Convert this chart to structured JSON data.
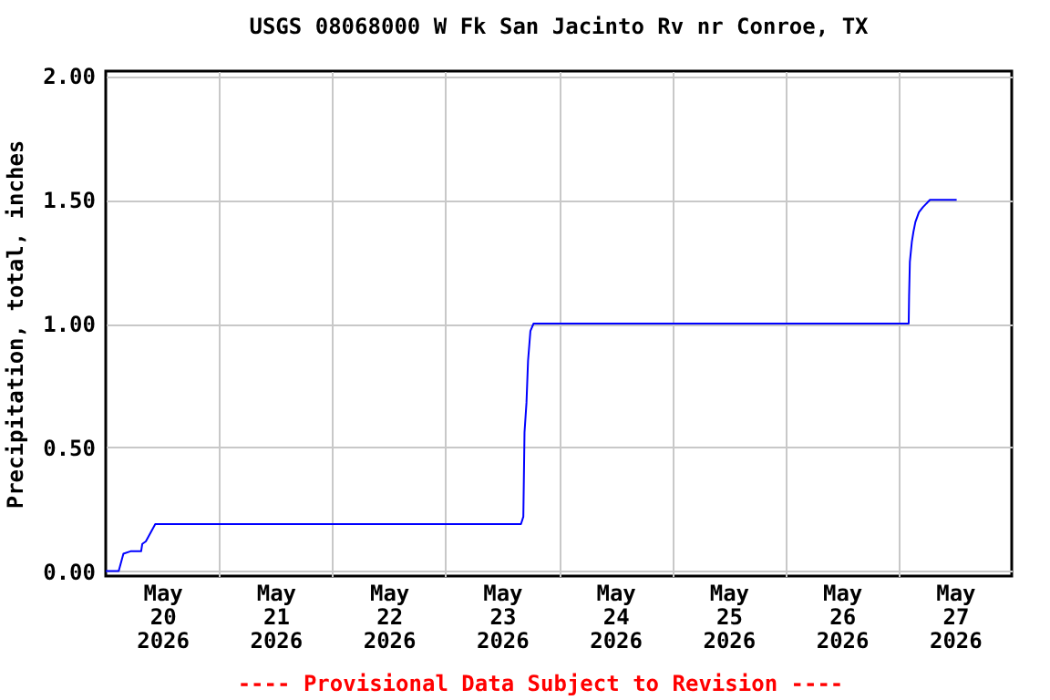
{
  "chart_data": {
    "type": "line",
    "title": "USGS 08068000 W Fk San Jacinto Rv nr Conroe, TX",
    "ylabel": "Precipitation, total, inches",
    "annotations": [
      "---- Provisional Data Subject to Revision ----"
    ],
    "x": [
      "2026-05-20T00:00",
      "2026-05-20T02:45",
      "2026-05-20T03:45",
      "2026-05-20T05:15",
      "2026-05-20T07:30",
      "2026-05-20T07:45",
      "2026-05-20T08:30",
      "2026-05-20T10:30",
      "2026-05-23T16:00",
      "2026-05-23T16:30",
      "2026-05-23T16:45",
      "2026-05-23T17:10",
      "2026-05-23T17:30",
      "2026-05-23T18:00",
      "2026-05-23T18:40",
      "2026-05-27T02:10",
      "2026-05-27T02:15",
      "2026-05-27T02:25",
      "2026-05-27T02:50",
      "2026-05-27T03:10",
      "2026-05-27T03:35",
      "2026-05-27T04:20",
      "2026-05-27T05:10",
      "2026-05-27T06:40",
      "2026-05-27T12:20"
    ],
    "series": [
      {
        "color": "#0000ff",
        "values": [
          0,
          0,
          0.07,
          0.08,
          0.08,
          0.11,
          0.12,
          0.19,
          0.19,
          0.22,
          0.56,
          0.68,
          0.85,
          0.97,
          1.0,
          1.0,
          1.11,
          1.25,
          1.33,
          1.37,
          1.41,
          1.45,
          1.47,
          1.5,
          1.5
        ]
      }
    ],
    "xlim": [
      "2026-05-20T00:00",
      "2026-05-28T00:00"
    ],
    "xticks": [
      {
        "value": "2026-05-21T00:00",
        "label": null
      },
      {
        "value": "2026-05-22T00:00",
        "label": null
      },
      {
        "value": "2026-05-23T00:00",
        "label": null
      },
      {
        "value": "2026-05-24T00:00",
        "label": null
      },
      {
        "value": "2026-05-25T00:00",
        "label": null
      },
      {
        "value": "2026-05-26T00:00",
        "label": null
      },
      {
        "value": "2026-05-27T00:00",
        "label": null
      },
      {
        "value": "2026-05-20T12:00",
        "label": "May\n20\n2026"
      },
      {
        "value": "2026-05-21T12:00",
        "label": "May\n21\n2026"
      },
      {
        "value": "2026-05-22T12:00",
        "label": "May\n22\n2026"
      },
      {
        "value": "2026-05-23T12:00",
        "label": "May\n23\n2026"
      },
      {
        "value": "2026-05-24T12:00",
        "label": "May\n24\n2026"
      },
      {
        "value": "2026-05-25T12:00",
        "label": "May\n25\n2026"
      },
      {
        "value": "2026-05-26T12:00",
        "label": "May\n26\n2026"
      },
      {
        "value": "2026-05-27T12:00",
        "label": "May\n27\n2026"
      }
    ],
    "ylim": [
      -0.02,
      2.02
    ],
    "yticks": [
      {
        "value": 0,
        "label": "0.00"
      },
      {
        "value": 0.5,
        "label": "0.50"
      },
      {
        "value": 1.0,
        "label": "1.00"
      },
      {
        "value": 1.5,
        "label": "1.50"
      },
      {
        "value": 2.0,
        "label": "2.00"
      }
    ],
    "grid": true,
    "marker": "none",
    "line_style": "solid"
  }
}
